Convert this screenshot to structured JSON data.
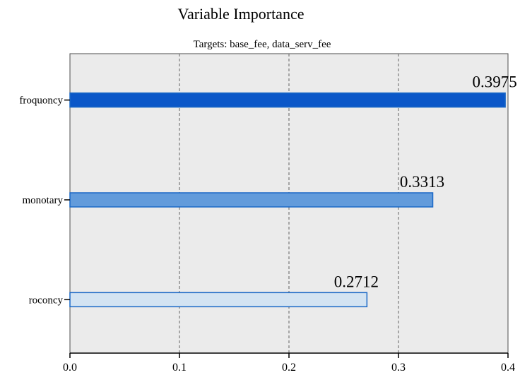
{
  "chart_data": {
    "type": "bar",
    "orientation": "horizontal",
    "title": "Variable Importance",
    "subtitle": "Targets: base_fee, data_serv_fee",
    "categories": [
      "froquoncy",
      "monotary",
      "roconcy"
    ],
    "values": [
      0.3975,
      0.3313,
      0.2712
    ],
    "data_labels": [
      "0.3975",
      "0.3313",
      "0.2712"
    ],
    "xlim": [
      0,
      0.4
    ],
    "x_ticks": [
      0.0,
      0.1,
      0.2,
      0.3,
      0.4
    ],
    "x_tick_labels": [
      "0.0",
      "0.1",
      "0.2",
      "0.3",
      "0.4"
    ],
    "grid": "vertical dashed",
    "colors": {
      "plot_background": "#ebebeb",
      "bar_fills": [
        "#0b57c8",
        "#629bdb",
        "#d3e3f2"
      ],
      "bar_stroke": "#1a68c6",
      "grid": "#777777"
    }
  }
}
